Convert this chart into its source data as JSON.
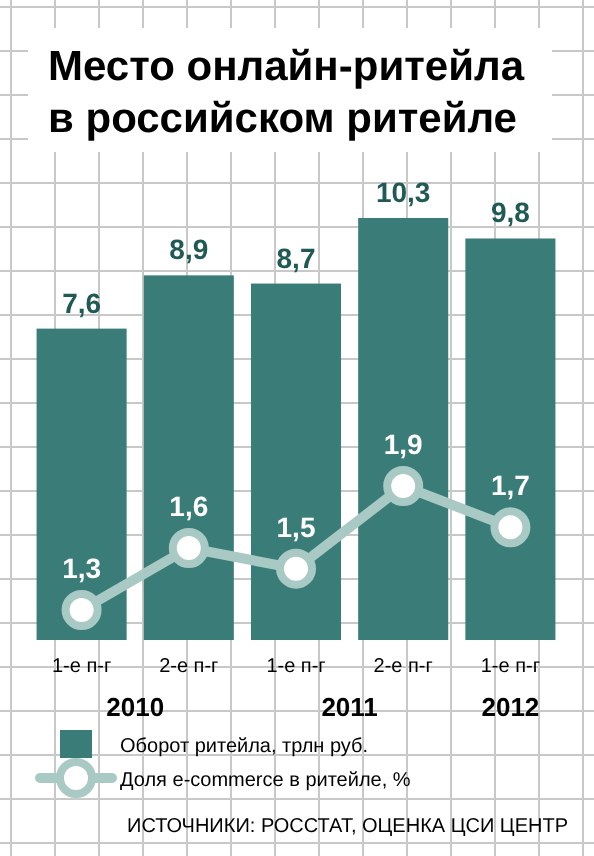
{
  "chart_data": {
    "type": "bar",
    "title": "Место онлайн-ритейла в российском ритейле",
    "categories": [
      "1-е п-г",
      "2-е п-г",
      "1-е п-г",
      "2-е п-г",
      "1-е п-г"
    ],
    "series": [
      {
        "name": "Оборот ритейла, трлн руб.",
        "color": "#3a7d78",
        "values": [
          7.6,
          8.9,
          8.7,
          10.3,
          9.8
        ],
        "value_labels": [
          "7,6",
          "8,9",
          "8,7",
          "10,3",
          "9,8"
        ]
      },
      {
        "name": "Доля e-commerce в ритейле, %",
        "type": "line",
        "axis": "y2",
        "color": "#a9c9c5",
        "values": [
          1.3,
          1.6,
          1.5,
          1.9,
          1.7
        ],
        "value_labels": [
          "1,3",
          "1,6",
          "1,5",
          "1,9",
          "1,7"
        ]
      }
    ],
    "tick_labels": "x",
    "legend": "bottom",
    "marker": "circle",
    "annotations": [
      "2010",
      "2011",
      "2012",
      "ИСТОЧНИКИ: РОССТАТ, ОЦЕНКА ЦСИ ЦЕНТР"
    ]
  }
}
